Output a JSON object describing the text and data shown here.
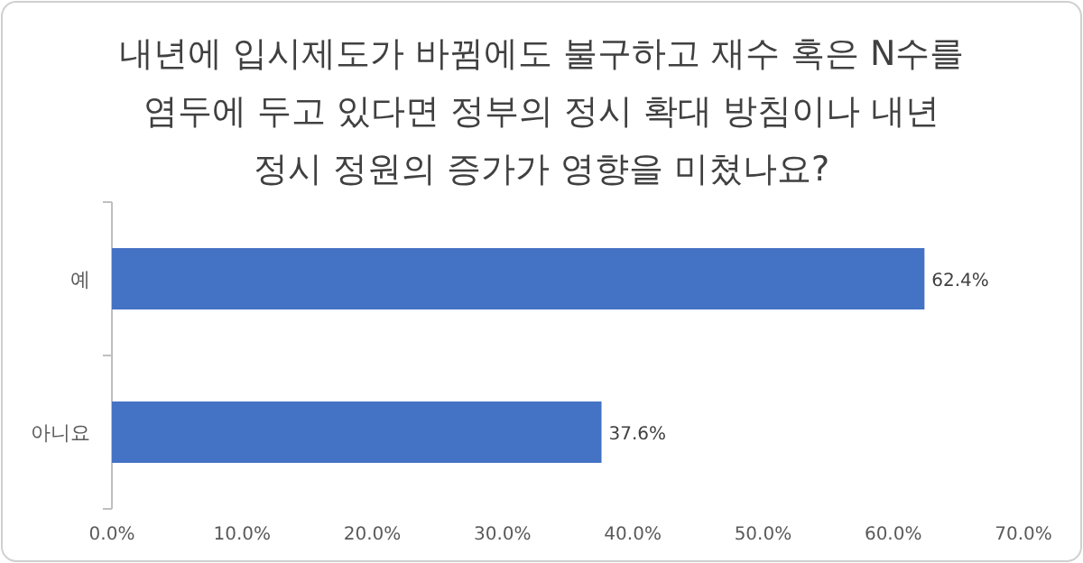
{
  "chart_data": {
    "type": "bar",
    "orientation": "horizontal",
    "title": "내년에 입시제도가 바뀜에도 불구하고 재수 혹은 N수를 염두에 두고 있다면 정부의 정시 확대 방침이나 내년 정시 정원의 증가가 영향을 미쳤나요?",
    "categories": [
      "예",
      "아니요"
    ],
    "values": [
      62.4,
      37.6
    ],
    "value_labels": [
      "62.4%",
      "37.6%"
    ],
    "color": "#4472c4",
    "xlim": [
      0,
      70
    ],
    "xticks": [
      {
        "value": 0,
        "label": "0.0%"
      },
      {
        "value": 10,
        "label": "10.0%"
      },
      {
        "value": 20,
        "label": "20.0%"
      },
      {
        "value": 30,
        "label": "30.0%"
      },
      {
        "value": 40,
        "label": "40.0%"
      },
      {
        "value": 50,
        "label": "50.0%"
      },
      {
        "value": 60,
        "label": "60.0%"
      },
      {
        "value": 70,
        "label": "70.0%"
      }
    ],
    "grid": false
  }
}
